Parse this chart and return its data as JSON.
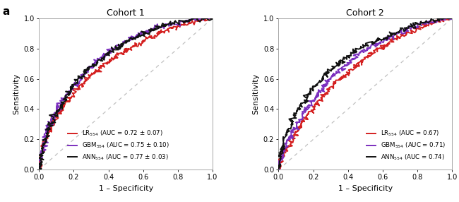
{
  "panel_a_label": "a",
  "cohort1_title": "Cohort 1",
  "cohort2_title": "Cohort 2",
  "xlabel": "1 – Specificity",
  "ylabel": "Sensitivity",
  "colors": {
    "LR": "#d42020",
    "GBM": "#7b2fbe",
    "ANN": "#111111"
  },
  "cohort1": {
    "LR": {
      "auc": 0.72,
      "std": 0.07,
      "label": "LR$_{554}$ (AUC = 0.72 ± 0.07)"
    },
    "GBM": {
      "auc": 0.75,
      "std": 0.1,
      "label": "GBM$_{554}$ (AUC = 0.75 ± 0.10)"
    },
    "ANN": {
      "auc": 0.77,
      "std": 0.03,
      "label": "ANN$_{554}$ (AUC = 0.77 ± 0.03)"
    }
  },
  "cohort2": {
    "LR": {
      "auc": 0.67,
      "label": "LR$_{554}$ (AUC = 0.67)"
    },
    "GBM": {
      "auc": 0.71,
      "label": "GBM$_{554}$ (AUC = 0.71)"
    },
    "ANN": {
      "auc": 0.74,
      "label": "ANN$_{554}$ (AUC = 0.74)"
    }
  },
  "xlim": [
    0.0,
    1.0
  ],
  "ylim": [
    0.0,
    1.0
  ],
  "xticks": [
    0.0,
    0.2,
    0.4,
    0.6,
    0.8,
    1.0
  ],
  "yticks": [
    0.0,
    0.2,
    0.4,
    0.6,
    0.8,
    1.0
  ],
  "line_width": 1.4,
  "diag_color": "#c0c0c0"
}
